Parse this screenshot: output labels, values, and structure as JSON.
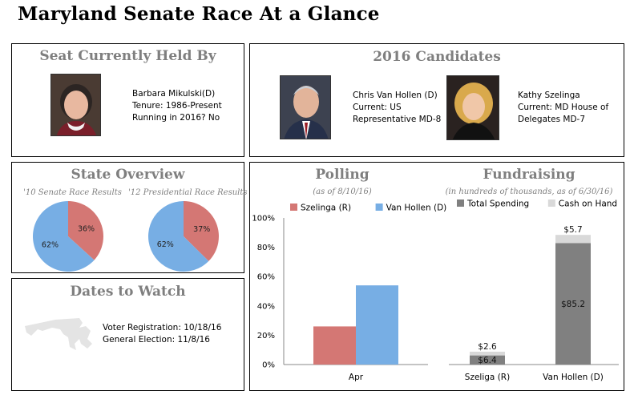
{
  "page_title": "Maryland Senate Race At a Glance",
  "seat": {
    "heading": "Seat Currently Held By",
    "name": "Barbara Mikulski(D)",
    "tenure": "Tenure: 1986-Present",
    "running": "Running in 2016? No"
  },
  "candidates": {
    "heading": "2016 Candidates",
    "list": [
      {
        "name": "Chris Van Hollen (D)",
        "line1": "Current: US",
        "line2": "Representative MD-8"
      },
      {
        "name": "Kathy Szelinga",
        "line1": "Current: MD House of",
        "line2": "Delegates MD-7"
      }
    ]
  },
  "state_overview": {
    "heading": "State Overview",
    "colors": {
      "red": "#d47774",
      "blue": "#77aee4"
    }
  },
  "dates": {
    "heading": "Dates to Watch",
    "voter_registration": "Voter Registration: 10/18/16",
    "general_election": "General Election: 11/8/16"
  },
  "polling_header": {
    "heading": "Polling",
    "subtitle": "(as of 8/10/16)"
  },
  "fundraising_header": {
    "heading": "Fundraising",
    "subtitle": "(in hundreds of thousands, as of 6/30/16)"
  },
  "chart_data": [
    {
      "type": "pie",
      "title": "'10 Senate Race Results",
      "slices": [
        {
          "label": "36%",
          "value": 36,
          "color": "#d47774"
        },
        {
          "label": "62%",
          "value": 62,
          "color": "#77aee4"
        }
      ]
    },
    {
      "type": "pie",
      "title": "'12 Presidential Race Results",
      "slices": [
        {
          "label": "37%",
          "value": 37,
          "color": "#d47774"
        },
        {
          "label": "62%",
          "value": 62,
          "color": "#77aee4"
        }
      ]
    },
    {
      "type": "bar",
      "categories": [
        "Apr"
      ],
      "series": [
        {
          "name": "Szelinga (R)",
          "values": [
            26
          ],
          "color": "#d47774"
        },
        {
          "name": "Van Hollen (D)",
          "values": [
            54
          ],
          "color": "#77aee4"
        }
      ],
      "yticks": [
        "0%",
        "20%",
        "40%",
        "60%",
        "80%",
        "100%"
      ],
      "ylim": [
        0,
        100
      ]
    },
    {
      "type": "bar",
      "stacked": true,
      "categories": [
        "Szeliga (R)",
        "Van Hollen (D)"
      ],
      "series": [
        {
          "name": "Total Spending",
          "values": [
            6.4,
            85.2
          ],
          "labels": [
            "$6.4",
            "$85.2"
          ],
          "color": "#808080"
        },
        {
          "name": "Cash on Hand",
          "values": [
            2.6,
            5.7
          ],
          "labels": [
            "$2.6",
            "$5.7"
          ],
          "color": "#d9d9d9"
        }
      ],
      "ylim": [
        0,
        100
      ]
    }
  ]
}
